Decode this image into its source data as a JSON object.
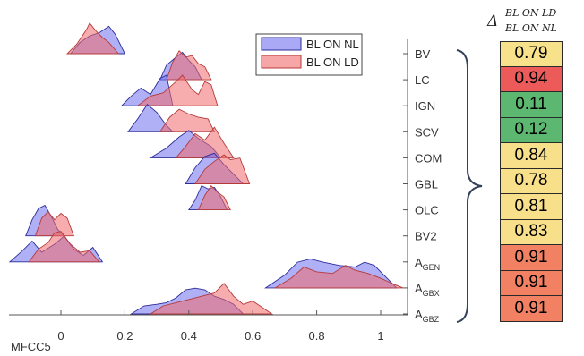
{
  "chart_data": {
    "type": "ridgeline",
    "xlabel": "MFCC5",
    "xlim": [
      -0.16,
      1.08
    ],
    "x_ticks": [
      0,
      0.2,
      0.4,
      0.6,
      0.8,
      1
    ],
    "x_tick_labels": [
      "0",
      "0.2",
      "0.4",
      "0.6",
      "0.8",
      "1"
    ],
    "categories": [
      "BV",
      "LC",
      "IGN",
      "SCV",
      "COM",
      "GBL",
      "OLC",
      "BV2",
      "A_GEN",
      "A_GBX",
      "A_GBZ"
    ],
    "category_labels": [
      {
        "main": "BV",
        "sub": ""
      },
      {
        "main": "LC",
        "sub": ""
      },
      {
        "main": "IGN",
        "sub": ""
      },
      {
        "main": "SCV",
        "sub": ""
      },
      {
        "main": "COM",
        "sub": ""
      },
      {
        "main": "GBL",
        "sub": ""
      },
      {
        "main": "OLC",
        "sub": ""
      },
      {
        "main": "BV2",
        "sub": ""
      },
      {
        "main": "A",
        "sub": "GEN"
      },
      {
        "main": "A",
        "sub": "GBX"
      },
      {
        "main": "A",
        "sub": "GBZ"
      }
    ],
    "legend": {
      "placement": "top-right",
      "entries": [
        "BL ON NL",
        "BL ON LD"
      ]
    },
    "series": [
      {
        "name": "BL ON NL",
        "color": "#6f6ff0",
        "distributions": [
          [
            [
              0.03,
              0
            ],
            [
              0.06,
              0.35
            ],
            [
              0.09,
              0.55
            ],
            [
              0.12,
              0.65
            ],
            [
              0.15,
              0.85
            ],
            [
              0.17,
              0.6
            ],
            [
              0.2,
              0
            ]
          ],
          [
            [
              0.31,
              0
            ],
            [
              0.33,
              0.45
            ],
            [
              0.36,
              0.7
            ],
            [
              0.38,
              0.85
            ],
            [
              0.4,
              0.6
            ],
            [
              0.42,
              0.4
            ],
            [
              0.44,
              0
            ]
          ],
          [
            [
              0.19,
              0
            ],
            [
              0.22,
              0.3
            ],
            [
              0.25,
              0.55
            ],
            [
              0.28,
              0.35
            ],
            [
              0.31,
              0.85
            ],
            [
              0.33,
              0.95
            ],
            [
              0.35,
              0
            ]
          ],
          [
            [
              0.21,
              0
            ],
            [
              0.24,
              0.4
            ],
            [
              0.27,
              0.85
            ],
            [
              0.3,
              0.6
            ],
            [
              0.33,
              0.2
            ],
            [
              0.35,
              0
            ]
          ],
          [
            [
              0.28,
              0
            ],
            [
              0.33,
              0.3
            ],
            [
              0.37,
              0.65
            ],
            [
              0.4,
              0.85
            ],
            [
              0.43,
              0.6
            ],
            [
              0.47,
              0.35
            ],
            [
              0.5,
              0
            ]
          ],
          [
            [
              0.39,
              0
            ],
            [
              0.42,
              0.5
            ],
            [
              0.45,
              0.85
            ],
            [
              0.48,
              0.95
            ],
            [
              0.51,
              0.6
            ],
            [
              0.54,
              0.3
            ],
            [
              0.57,
              0
            ]
          ],
          [
            [
              0.4,
              0
            ],
            [
              0.42,
              0.3
            ],
            [
              0.44,
              0.75
            ],
            [
              0.46,
              0.65
            ],
            [
              0.48,
              0.7
            ],
            [
              0.5,
              0.4
            ],
            [
              0.52,
              0
            ]
          ],
          [
            [
              -0.11,
              0
            ],
            [
              -0.09,
              0.5
            ],
            [
              -0.07,
              0.85
            ],
            [
              -0.05,
              0.95
            ],
            [
              -0.03,
              0.6
            ],
            [
              -0.01,
              0.2
            ],
            [
              0.01,
              0
            ]
          ],
          [
            [
              -0.16,
              0
            ],
            [
              -0.12,
              0.35
            ],
            [
              -0.09,
              0.65
            ],
            [
              -0.06,
              0.3
            ],
            [
              -0.02,
              0.55
            ],
            [
              0.01,
              0.8
            ],
            [
              0.04,
              0.4
            ],
            [
              0.07,
              0.2
            ],
            [
              0.1,
              0.45
            ],
            [
              0.13,
              0
            ]
          ],
          [
            [
              0.64,
              0
            ],
            [
              0.7,
              0.4
            ],
            [
              0.74,
              0.8
            ],
            [
              0.78,
              0.9
            ],
            [
              0.82,
              0.8
            ],
            [
              0.87,
              0.7
            ],
            [
              0.92,
              0.65
            ],
            [
              0.95,
              0.8
            ],
            [
              0.98,
              0.7
            ],
            [
              1.02,
              0.3
            ],
            [
              1.05,
              0
            ]
          ],
          [
            [
              0.22,
              0
            ],
            [
              0.26,
              0.25
            ],
            [
              0.3,
              0.3
            ],
            [
              0.33,
              0.35
            ],
            [
              0.36,
              0.5
            ],
            [
              0.39,
              0.75
            ],
            [
              0.42,
              0.8
            ],
            [
              0.45,
              0.75
            ],
            [
              0.48,
              0.55
            ],
            [
              0.51,
              0.45
            ],
            [
              0.54,
              0.3
            ],
            [
              0.57,
              0
            ]
          ]
        ]
      },
      {
        "name": "BL ON LD",
        "color": "#f06a6a",
        "distributions": [
          [
            [
              0.02,
              0
            ],
            [
              0.05,
              0.3
            ],
            [
              0.08,
              0.75
            ],
            [
              0.09,
              0.95
            ],
            [
              0.11,
              0.7
            ],
            [
              0.13,
              0.5
            ],
            [
              0.15,
              0.35
            ],
            [
              0.18,
              0
            ]
          ],
          [
            [
              0.33,
              0
            ],
            [
              0.35,
              0.55
            ],
            [
              0.37,
              0.9
            ],
            [
              0.39,
              0.7
            ],
            [
              0.41,
              0.75
            ],
            [
              0.43,
              0.5
            ],
            [
              0.45,
              0.4
            ],
            [
              0.47,
              0
            ]
          ],
          [
            [
              0.24,
              0
            ],
            [
              0.28,
              0.3
            ],
            [
              0.32,
              0.4
            ],
            [
              0.36,
              0.75
            ],
            [
              0.38,
              0.95
            ],
            [
              0.41,
              0.5
            ],
            [
              0.43,
              0.35
            ],
            [
              0.45,
              0.75
            ],
            [
              0.47,
              0.65
            ],
            [
              0.49,
              0
            ]
          ],
          [
            [
              0.31,
              0
            ],
            [
              0.34,
              0.45
            ],
            [
              0.37,
              0.7
            ],
            [
              0.4,
              0.55
            ],
            [
              0.43,
              0.45
            ],
            [
              0.46,
              0.4
            ],
            [
              0.48,
              0
            ]
          ],
          [
            [
              0.36,
              0
            ],
            [
              0.39,
              0.35
            ],
            [
              0.42,
              0.75
            ],
            [
              0.45,
              0.55
            ],
            [
              0.48,
              0.95
            ],
            [
              0.51,
              0.45
            ],
            [
              0.54,
              0
            ]
          ],
          [
            [
              0.42,
              0
            ],
            [
              0.45,
              0.45
            ],
            [
              0.48,
              0.7
            ],
            [
              0.51,
              0.9
            ],
            [
              0.53,
              0.75
            ],
            [
              0.56,
              0.8
            ],
            [
              0.59,
              0
            ]
          ],
          [
            [
              0.43,
              0
            ],
            [
              0.45,
              0.45
            ],
            [
              0.47,
              0.75
            ],
            [
              0.49,
              0.55
            ],
            [
              0.51,
              0.4
            ],
            [
              0.53,
              0
            ]
          ],
          [
            [
              -0.08,
              0
            ],
            [
              -0.06,
              0.55
            ],
            [
              -0.04,
              0.75
            ],
            [
              -0.02,
              0.5
            ],
            [
              0.0,
              0.7
            ],
            [
              0.02,
              0.55
            ],
            [
              0.04,
              0
            ]
          ],
          [
            [
              -0.1,
              0
            ],
            [
              -0.07,
              0.4
            ],
            [
              -0.04,
              0.6
            ],
            [
              -0.02,
              0.9
            ],
            [
              0.0,
              0.95
            ],
            [
              0.03,
              0.55
            ],
            [
              0.06,
              0.3
            ],
            [
              0.09,
              0.35
            ],
            [
              0.12,
              0
            ]
          ],
          [
            [
              0.67,
              0
            ],
            [
              0.72,
              0.3
            ],
            [
              0.76,
              0.65
            ],
            [
              0.8,
              0.5
            ],
            [
              0.85,
              0.45
            ],
            [
              0.89,
              0.7
            ],
            [
              0.92,
              0.55
            ],
            [
              0.96,
              0.45
            ],
            [
              1.0,
              0.3
            ],
            [
              1.04,
              0.12
            ],
            [
              1.07,
              0
            ]
          ],
          [
            [
              0.28,
              0
            ],
            [
              0.32,
              0.25
            ],
            [
              0.36,
              0.35
            ],
            [
              0.4,
              0.45
            ],
            [
              0.44,
              0.55
            ],
            [
              0.48,
              0.65
            ],
            [
              0.51,
              0.95
            ],
            [
              0.54,
              0.55
            ],
            [
              0.57,
              0.3
            ],
            [
              0.6,
              0.4
            ],
            [
              0.63,
              0.2
            ],
            [
              0.66,
              0
            ]
          ]
        ]
      }
    ],
    "ratio_values": [
      0.79,
      0.94,
      0.11,
      0.12,
      0.84,
      0.78,
      0.81,
      0.83,
      0.91,
      0.91,
      0.91
    ],
    "ratio_labels": [
      "0.79",
      "0.94",
      "0.11",
      "0.12",
      "0.84",
      "0.78",
      "0.81",
      "0.83",
      "0.91",
      "0.91",
      "0.91"
    ],
    "ratio_colors": [
      "#f7e28b",
      "#ec5a5a",
      "#5cb870",
      "#5cb870",
      "#f8e08a",
      "#f8e08a",
      "#f8e08a",
      "#f8e08a",
      "#f28062",
      "#f28062",
      "#f28062"
    ],
    "ratio_header": {
      "symbol": "Δ",
      "numerator": "BL ON LD",
      "denominator": "BL ON NL"
    }
  }
}
